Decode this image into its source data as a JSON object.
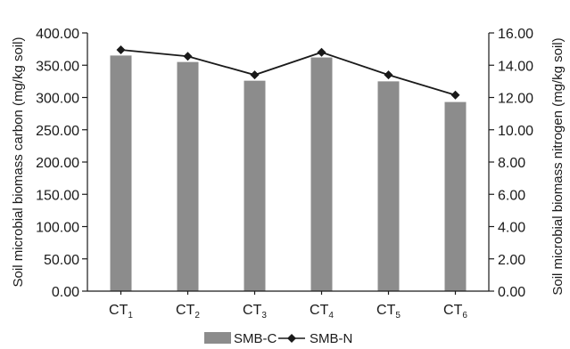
{
  "chart_data": {
    "type": "bar",
    "categories": [
      {
        "base": "CT",
        "sub": "1"
      },
      {
        "base": "CT",
        "sub": "2"
      },
      {
        "base": "CT",
        "sub": "3"
      },
      {
        "base": "CT",
        "sub": "4"
      },
      {
        "base": "CT",
        "sub": "5"
      },
      {
        "base": "CT",
        "sub": "6"
      }
    ],
    "series": [
      {
        "name": "SMB-C",
        "type": "bar",
        "axis": "left",
        "color": "#8c8c8c",
        "values": [
          365,
          355,
          326,
          362,
          325,
          293
        ]
      },
      {
        "name": "SMB-N",
        "type": "line",
        "axis": "right",
        "color": "#1a1a1a",
        "marker": "diamond",
        "values": [
          14.95,
          14.55,
          13.4,
          14.8,
          13.4,
          12.15
        ]
      }
    ],
    "y_left": {
      "label": "Soil microbial biomass carbon (mg/kg soil)",
      "ylim": [
        0,
        400
      ],
      "ticks": [
        "0.00",
        "50.00",
        "100.00",
        "150.00",
        "200.00",
        "250.00",
        "300.00",
        "350.00",
        "400.00"
      ]
    },
    "y_right": {
      "label": "Soil microbial biomass nitrogen (mg/kg soil)",
      "ylim": [
        0,
        16
      ],
      "ticks": [
        "0.00",
        "2.00",
        "4.00",
        "6.00",
        "8.00",
        "10.00",
        "12.00",
        "14.00",
        "16.00"
      ]
    },
    "grid": false,
    "legend_position": "bottom"
  }
}
